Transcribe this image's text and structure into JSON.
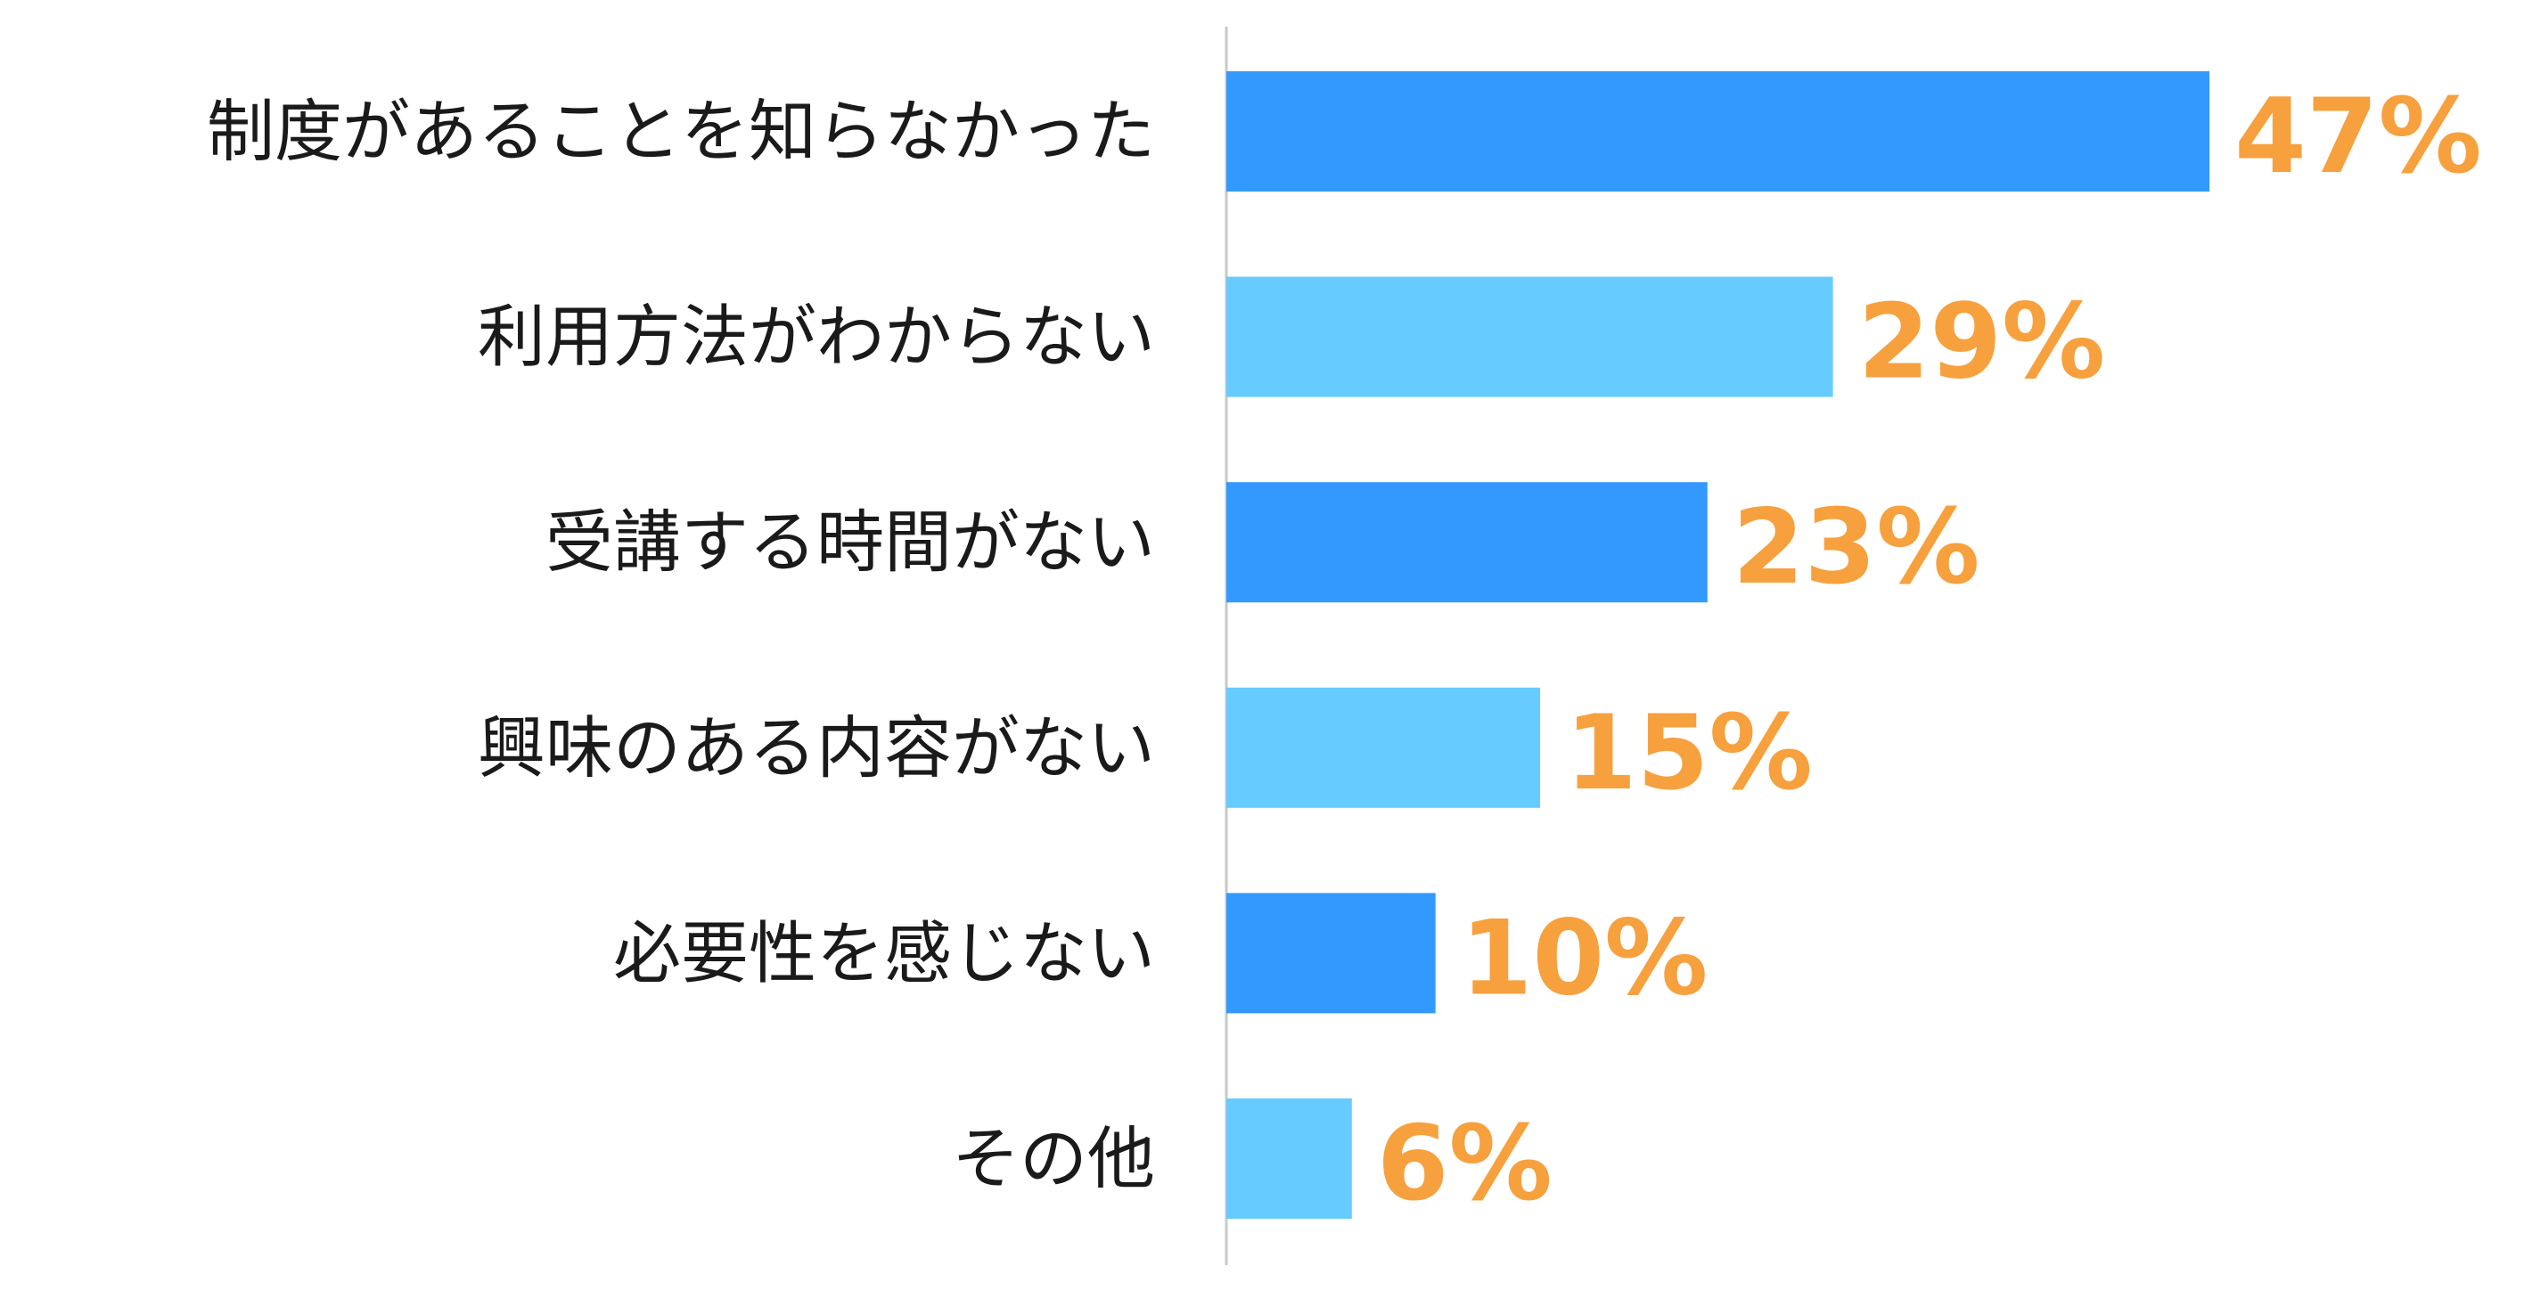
{
  "chart_data": {
    "type": "bar",
    "orientation": "horizontal",
    "categories": [
      "制度があることを知らなかった",
      "利用方法がわからない",
      "受講する時間がない",
      "興味のある内容がない",
      "必要性を感じない",
      "その他"
    ],
    "values": [
      47,
      29,
      23,
      15,
      10,
      6
    ],
    "value_labels": [
      "47%",
      "29%",
      "23%",
      "15%",
      "10%",
      "6%"
    ],
    "unit": "%",
    "xlim": [
      0,
      60
    ],
    "title": "",
    "xlabel": "",
    "ylabel": "",
    "grid": false,
    "legend": "none",
    "colors": {
      "bar_odd": "#3399FF",
      "bar_even": "#66CCFF",
      "value_label": "#F7A03E",
      "axis_line": "#C8C8C8",
      "category_text": "#1A1A1A"
    }
  }
}
